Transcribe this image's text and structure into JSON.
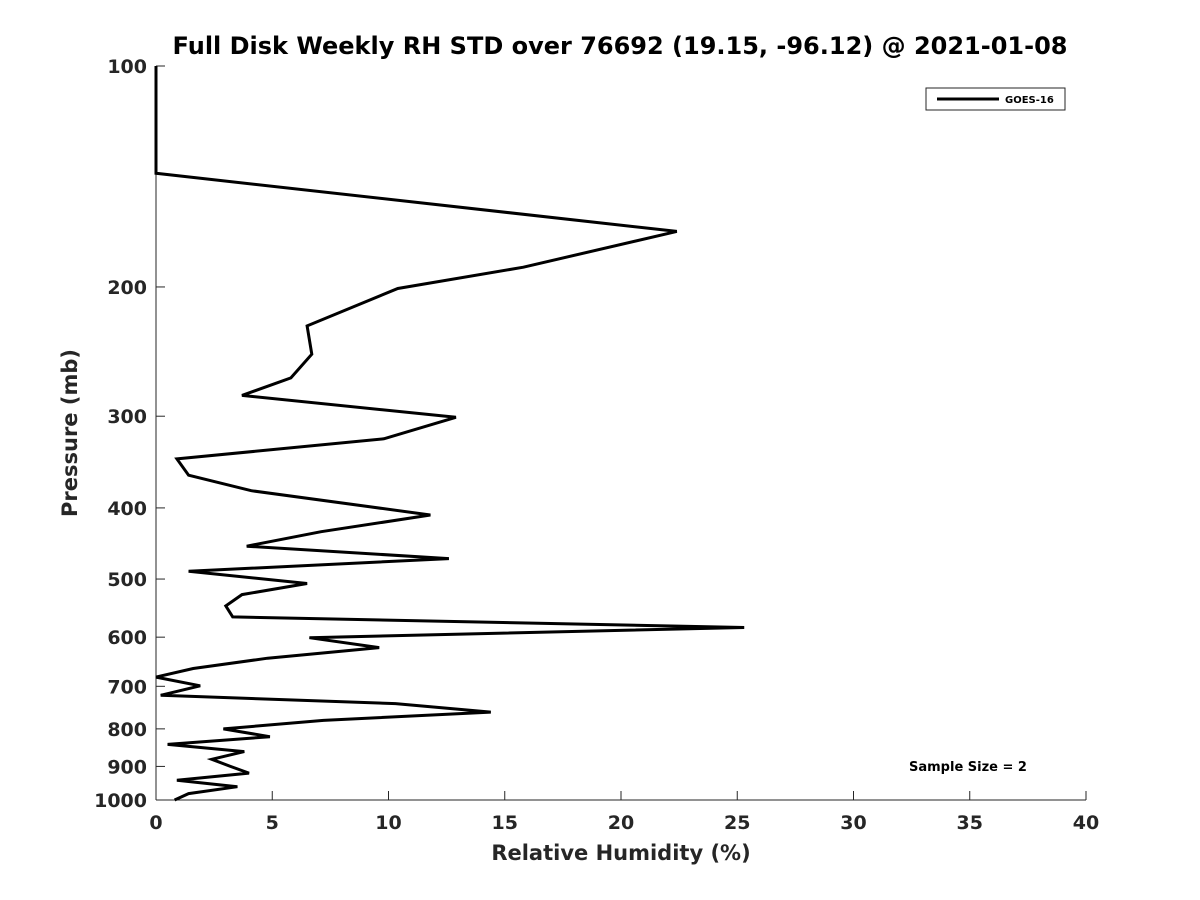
{
  "chart_data": {
    "type": "line",
    "title": "Full Disk Weekly RH STD over 76692 (19.15, -96.12) @ 2021-01-08",
    "xlabel": "Relative Humidity (%)",
    "ylabel": "Pressure (mb)",
    "xlim": [
      0,
      40
    ],
    "ylim": [
      100,
      1000
    ],
    "yscale": "log",
    "y_reversed": true,
    "grid": false,
    "x_ticks": [
      "0",
      "5",
      "10",
      "15",
      "20",
      "25",
      "30",
      "35",
      "40"
    ],
    "y_ticks": [
      "100",
      "200",
      "300",
      "400",
      "500",
      "600",
      "700",
      "800",
      "900",
      "1000"
    ],
    "legend": {
      "position": "top-right",
      "entries": [
        "GOES-16"
      ]
    },
    "annotation": "Sample Size = 2",
    "series": [
      {
        "name": "GOES-16",
        "color": "#000000",
        "points": [
          [
            0,
            100
          ],
          [
            0,
            110
          ],
          [
            0,
            125
          ],
          [
            0,
            140
          ],
          [
            22.4,
            168
          ],
          [
            15.8,
            188
          ],
          [
            10.4,
            201
          ],
          [
            6.5,
            226
          ],
          [
            6.7,
            247
          ],
          [
            5.8,
            266
          ],
          [
            3.7,
            281
          ],
          [
            12.9,
            301
          ],
          [
            9.8,
            322
          ],
          [
            0.9,
            343
          ],
          [
            1.4,
            361
          ],
          [
            4.1,
            379
          ],
          [
            11.8,
            409
          ],
          [
            7.1,
            431
          ],
          [
            3.9,
            451
          ],
          [
            12.6,
            469
          ],
          [
            1.4,
            488
          ],
          [
            6.5,
            507
          ],
          [
            3.7,
            525
          ],
          [
            3.0,
            544
          ],
          [
            3.3,
            563
          ],
          [
            25.3,
            582
          ],
          [
            6.6,
            601
          ],
          [
            9.6,
            620
          ],
          [
            4.8,
            641
          ],
          [
            1.6,
            662
          ],
          [
            0.0,
            680
          ],
          [
            1.9,
            699
          ],
          [
            0.2,
            720
          ],
          [
            10.3,
            739
          ],
          [
            14.4,
            759
          ],
          [
            7.2,
            779
          ],
          [
            2.9,
            800
          ],
          [
            4.9,
            820
          ],
          [
            0.5,
            840
          ],
          [
            3.8,
            859
          ],
          [
            2.4,
            880
          ],
          [
            3.2,
            900
          ],
          [
            4.0,
            919
          ],
          [
            0.9,
            940
          ],
          [
            3.5,
            959
          ],
          [
            1.4,
            980
          ],
          [
            0.8,
            1000
          ]
        ]
      }
    ]
  }
}
